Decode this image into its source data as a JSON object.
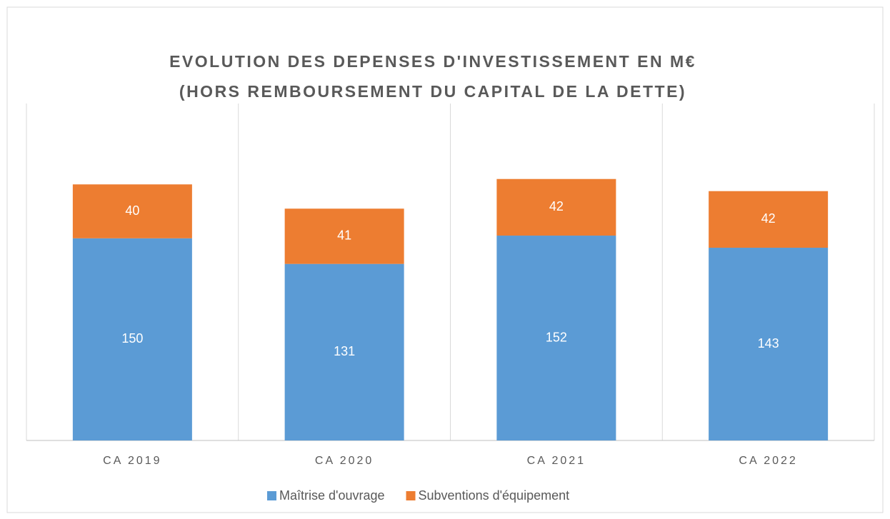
{
  "chart_data": {
    "type": "stacked_bar",
    "title": "EVOLUTION DES DEPENSES D'INVESTISSEMENT EN M€",
    "subtitle": "(HORS REMBOURSEMENT DU CAPITAL DE LA DETTE)",
    "categories": [
      "CA 2019",
      "CA 2020",
      "CA 2021",
      "CA 2022"
    ],
    "series": [
      {
        "name": "Maîtrise d'ouvrage",
        "color": "#5b9bd5",
        "values": [
          150,
          131,
          152,
          143
        ]
      },
      {
        "name": "Subventions d'équipement",
        "color": "#ed7d31",
        "values": [
          40,
          41,
          42,
          42
        ]
      }
    ],
    "ylim": [
      0,
      250
    ],
    "legend": "bottom"
  }
}
